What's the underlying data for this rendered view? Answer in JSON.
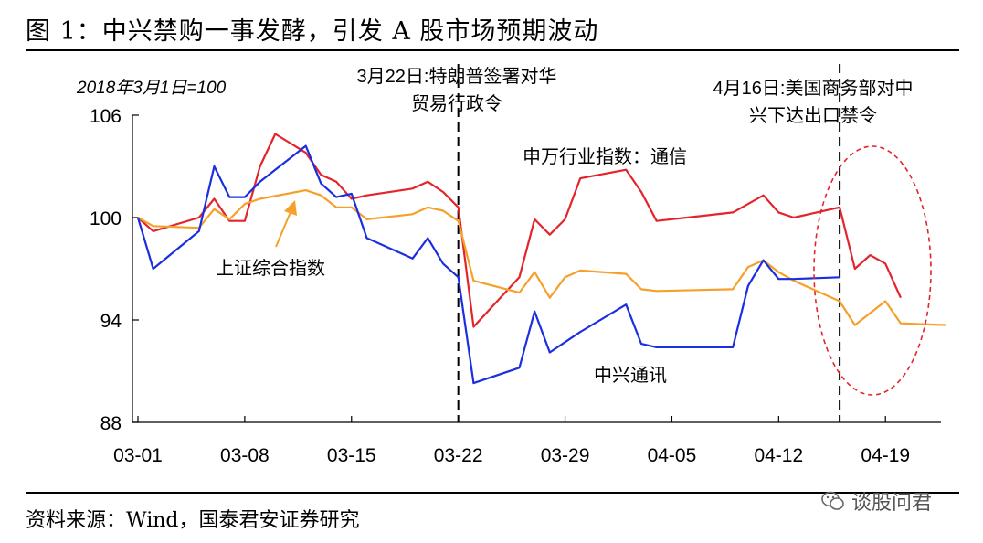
{
  "title": "图 1：中兴禁购一事发酵，引发 A 股市场预期波动",
  "source": "资料来源：Wind，国泰君安证券研究",
  "watermark": "谈股问君",
  "chart_data": {
    "type": "line",
    "base_label": "2018年3月1日=100",
    "xlabel": "",
    "ylabel": "",
    "ylim": [
      88,
      106
    ],
    "yticks": [
      88,
      94,
      100,
      106
    ],
    "x_tick_labels": [
      "03-01",
      "03-08",
      "03-15",
      "03-22",
      "03-29",
      "04-05",
      "04-12",
      "04-19"
    ],
    "x_tick_dates": [
      "2018-03-01",
      "2018-03-08",
      "2018-03-15",
      "2018-03-22",
      "2018-03-29",
      "2018-04-05",
      "2018-04-12",
      "2018-04-19"
    ],
    "xlim": [
      "2018-03-01",
      "2018-04-23"
    ],
    "colors": {
      "red": "#e3242b",
      "orange": "#f5a02a",
      "blue": "#1a2fe0",
      "annotation_ellipse": "#e3242b"
    },
    "series": [
      {
        "name": "申万行业指数：通信",
        "color": "#e3242b",
        "x": [
          "2018-03-01",
          "2018-03-02",
          "2018-03-05",
          "2018-03-06",
          "2018-03-07",
          "2018-03-08",
          "2018-03-09",
          "2018-03-10",
          "2018-03-12",
          "2018-03-13",
          "2018-03-14",
          "2018-03-15",
          "2018-03-16",
          "2018-03-19",
          "2018-03-20",
          "2018-03-21",
          "2018-03-22",
          "2018-03-23",
          "2018-03-26",
          "2018-03-27",
          "2018-03-28",
          "2018-03-29",
          "2018-03-30",
          "2018-04-02",
          "2018-04-03",
          "2018-04-04",
          "2018-04-09",
          "2018-04-10",
          "2018-04-11",
          "2018-04-12",
          "2018-04-13",
          "2018-04-16",
          "2018-04-17",
          "2018-04-18",
          "2018-04-19",
          "2018-04-20"
        ],
        "y": [
          100.0,
          99.2,
          100.0,
          101.1,
          99.8,
          99.8,
          103.0,
          104.9,
          103.8,
          102.5,
          102.1,
          101.1,
          101.3,
          101.7,
          102.1,
          101.5,
          100.6,
          93.6,
          96.5,
          99.9,
          99.0,
          99.9,
          102.3,
          102.8,
          101.5,
          99.8,
          100.3,
          100.8,
          101.3,
          100.3,
          100.0,
          100.6,
          97.0,
          97.8,
          97.3,
          95.3
        ]
      },
      {
        "name": "上证综合指数",
        "color": "#f5a02a",
        "x": [
          "2018-03-01",
          "2018-03-02",
          "2018-03-05",
          "2018-03-06",
          "2018-03-07",
          "2018-03-08",
          "2018-03-09",
          "2018-03-12",
          "2018-03-13",
          "2018-03-14",
          "2018-03-15",
          "2018-03-16",
          "2018-03-19",
          "2018-03-20",
          "2018-03-21",
          "2018-03-22",
          "2018-03-23",
          "2018-03-26",
          "2018-03-27",
          "2018-03-28",
          "2018-03-29",
          "2018-03-30",
          "2018-04-02",
          "2018-04-03",
          "2018-04-04",
          "2018-04-09",
          "2018-04-10",
          "2018-04-11",
          "2018-04-12",
          "2018-04-13",
          "2018-04-16",
          "2018-04-17",
          "2018-04-18",
          "2018-04-19",
          "2018-04-20",
          "2018-04-23"
        ],
        "y": [
          100.0,
          99.5,
          99.4,
          100.5,
          99.9,
          100.8,
          101.1,
          101.6,
          101.3,
          100.6,
          100.6,
          99.9,
          100.2,
          100.6,
          100.4,
          99.8,
          96.3,
          95.6,
          96.8,
          95.3,
          96.5,
          96.9,
          96.7,
          95.8,
          95.7,
          95.8,
          97.1,
          97.5,
          96.8,
          96.3,
          95.1,
          93.7,
          94.4,
          95.1,
          93.8,
          93.7
        ]
      },
      {
        "name": "中兴通讯",
        "color": "#1a2fe0",
        "x": [
          "2018-03-01",
          "2018-03-02",
          "2018-03-05",
          "2018-03-06",
          "2018-03-07",
          "2018-03-08",
          "2018-03-09",
          "2018-03-12",
          "2018-03-13",
          "2018-03-14",
          "2018-03-15",
          "2018-03-16",
          "2018-03-19",
          "2018-03-20",
          "2018-03-21",
          "2018-03-22",
          "2018-03-23",
          "2018-03-26",
          "2018-03-27",
          "2018-03-28",
          "2018-03-29",
          "2018-03-30",
          "2018-04-02",
          "2018-04-03",
          "2018-04-04",
          "2018-04-09",
          "2018-04-10",
          "2018-04-11",
          "2018-04-12",
          "2018-04-13",
          "2018-04-16"
        ],
        "y": [
          100.0,
          97.0,
          99.2,
          103.0,
          101.2,
          101.2,
          102.1,
          104.2,
          102.0,
          101.2,
          101.4,
          98.8,
          97.6,
          98.8,
          97.3,
          96.5,
          90.3,
          91.2,
          94.5,
          92.1,
          92.7,
          93.3,
          94.9,
          92.6,
          92.4,
          92.4,
          96.0,
          97.5,
          96.4,
          96.4,
          96.5
        ]
      }
    ],
    "annotations": [
      {
        "date": "2018-03-22",
        "text_line1": "3月22日:特朗普签署对华",
        "text_line2": "贸易行政令",
        "style": "dashed vertical line"
      },
      {
        "date": "2018-04-16",
        "text_line1": "4月16日:美国商务部对中",
        "text_line2": "兴下达出口禁令",
        "style": "dashed vertical line"
      }
    ],
    "legend": "inline labels",
    "grid": false
  }
}
